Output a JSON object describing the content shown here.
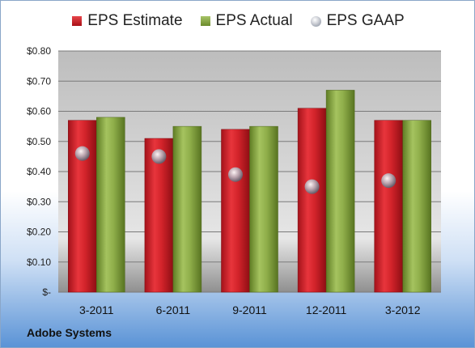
{
  "chart_data": {
    "type": "bar",
    "categories": [
      "3-2011",
      "6-2011",
      "9-2011",
      "12-2011",
      "3-2012"
    ],
    "series": [
      {
        "name": "EPS Estimate",
        "kind": "bar",
        "color": "#d2232a",
        "values": [
          0.57,
          0.51,
          0.54,
          0.61,
          0.57
        ]
      },
      {
        "name": "EPS Actual",
        "kind": "bar",
        "color": "#8fae4a",
        "values": [
          0.58,
          0.55,
          0.55,
          0.67,
          0.57
        ]
      },
      {
        "name": "EPS GAAP",
        "kind": "marker",
        "color": "#b9bec8",
        "values": [
          0.46,
          0.45,
          0.39,
          0.35,
          0.37
        ]
      }
    ],
    "ylim": [
      0,
      0.8
    ],
    "yticks": [
      0,
      0.1,
      0.2,
      0.3,
      0.4,
      0.5,
      0.6,
      0.7,
      0.8
    ],
    "ytick_labels": [
      "$-",
      "$0.10",
      "$0.20",
      "$0.30",
      "$0.40",
      "$0.50",
      "$0.60",
      "$0.70",
      "$0.80"
    ],
    "grid": true,
    "legend": "top"
  },
  "company": "Adobe Systems"
}
